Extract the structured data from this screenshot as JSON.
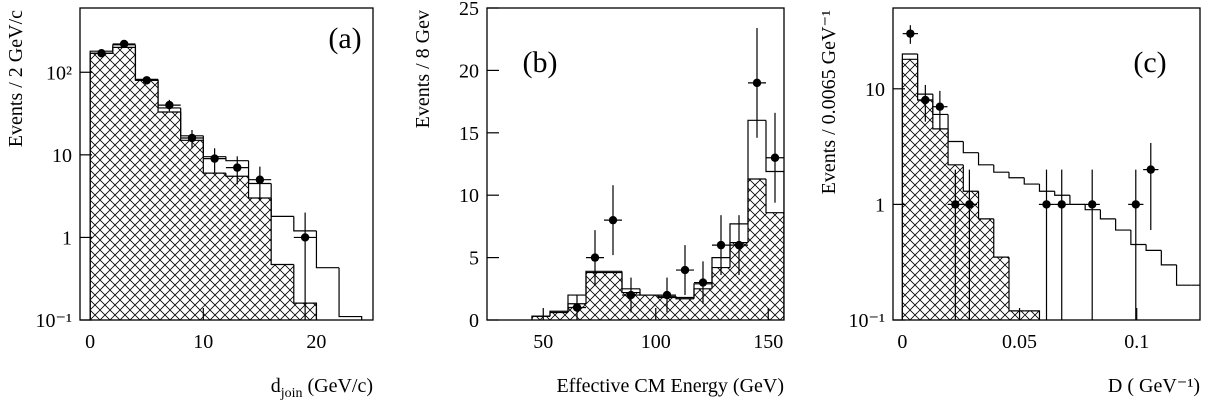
{
  "chart_data": [
    {
      "type": "histogram",
      "label": "(a)",
      "ylabel": "Events / 2 GeV/c",
      "xlabel": {
        "text": "d",
        "sub": "join",
        "tail": " (GeV/c)"
      },
      "xlim": [
        -0.9,
        25
      ],
      "xticks": [
        0,
        10,
        20
      ],
      "ylim": [
        0.1,
        600
      ],
      "log_y": true,
      "yticks": [
        {
          "value": 0.1,
          "label": "10⁻¹"
        },
        1,
        10,
        {
          "value": 100,
          "label": "10²"
        }
      ],
      "bins": [
        0,
        2,
        4,
        6,
        8,
        10,
        12,
        14,
        16,
        18,
        20,
        22,
        24
      ],
      "histograms": [
        {
          "fill": "hatch",
          "counts": [
            170,
            200,
            80,
            33,
            15,
            6,
            5.5,
            3,
            0.47,
            0.16,
            null,
            null
          ]
        },
        {
          "fill": "none",
          "counts": [
            180,
            215,
            82,
            37,
            17,
            9.5,
            8.5,
            4.5,
            1.8,
            1.2,
            0.43,
            0.11
          ]
        }
      ],
      "points": {
        "x": [
          1,
          3,
          5,
          7,
          9,
          11,
          13,
          15,
          19
        ],
        "values": [
          170,
          220,
          80,
          40,
          16,
          9,
          7,
          5,
          1
        ],
        "errors": [
          13,
          14.8,
          8.9,
          6.3,
          4,
          3,
          2.6,
          2.2,
          1
        ],
        "xerr": 1
      }
    },
    {
      "type": "histogram",
      "label": "(b)",
      "ylabel": "Events / 8 Gev",
      "xlabel": "Effective CM Energy (GeV)",
      "xlim": [
        25,
        157
      ],
      "xticks": [
        50,
        100,
        150
      ],
      "ylim": [
        0,
        25
      ],
      "log_y": false,
      "yticks": [
        0,
        5,
        10,
        15,
        20,
        25
      ],
      "bins": [
        45,
        53,
        61,
        69,
        77,
        85,
        93,
        101,
        109,
        117,
        125,
        133,
        141,
        149,
        157
      ],
      "histograms": [
        {
          "fill": "hatch",
          "counts": [
            0.3,
            0.6,
            1.3,
            3.8,
            3.8,
            2.2,
            2.0,
            1.8,
            1.7,
            2.5,
            4.2,
            6.2,
            11.3,
            8.6
          ]
        },
        {
          "fill": "none",
          "counts": [
            0.3,
            0.7,
            2.0,
            3.9,
            3.9,
            2.5,
            2.0,
            1.9,
            1.8,
            2.9,
            5.0,
            7.7,
            16,
            11.9
          ]
        }
      ],
      "points": {
        "x": [
          65,
          73,
          81,
          89,
          105,
          113,
          121,
          129,
          137,
          145,
          153
        ],
        "values": [
          1,
          5,
          8,
          2,
          2,
          4,
          3,
          6,
          6,
          19,
          13
        ],
        "errors": [
          1,
          2.2,
          2.8,
          1.4,
          1.4,
          2,
          1.7,
          2.4,
          2.4,
          4.4,
          3.6
        ],
        "xerr": 4
      }
    },
    {
      "type": "histogram",
      "label": "(c)",
      "ylabel": "Events / 0.0065 GeV⁻¹",
      "xlabel": "D ( GeV⁻¹)",
      "xlim": [
        -0.004,
        0.127
      ],
      "xticks": [
        0,
        0.05,
        0.1
      ],
      "ylim": [
        0.1,
        50
      ],
      "log_y": true,
      "yticks": [
        {
          "value": 0.1,
          "label": "10⁻¹"
        },
        1,
        10
      ],
      "bins": [
        0,
        0.0065,
        0.013,
        0.0195,
        0.026,
        0.0325,
        0.039,
        0.0455,
        0.052,
        0.0585,
        0.065,
        0.0715,
        0.078,
        0.0845,
        0.091,
        0.0975,
        0.104,
        0.1105,
        0.117,
        0.1235,
        0.13
      ],
      "histograms": [
        {
          "fill": "hatch",
          "counts": [
            18,
            8,
            4.5,
            2.2,
            1.3,
            0.75,
            0.35,
            0.12,
            0.12,
            null,
            null,
            null,
            null,
            null,
            null,
            null,
            null,
            null,
            null,
            null
          ]
        },
        {
          "fill": "none",
          "counts": [
            20,
            9,
            6,
            3.5,
            2.8,
            2.2,
            1.9,
            1.7,
            1.5,
            1.3,
            1.2,
            1.0,
            0.9,
            0.75,
            0.6,
            0.45,
            0.4,
            0.3,
            0.2,
            0.2
          ]
        }
      ],
      "points": {
        "x": [
          0.0034,
          0.0098,
          0.016,
          0.0226,
          0.0286,
          0.0615,
          0.068,
          0.081,
          0.0996,
          0.106
        ],
        "values": [
          30,
          8,
          7,
          1,
          1,
          1,
          1,
          1,
          1,
          2
        ],
        "errors": [
          5.5,
          2.8,
          2.6,
          1,
          1,
          1,
          1,
          1,
          1,
          1.4
        ],
        "xerr": 0.00325
      }
    }
  ]
}
